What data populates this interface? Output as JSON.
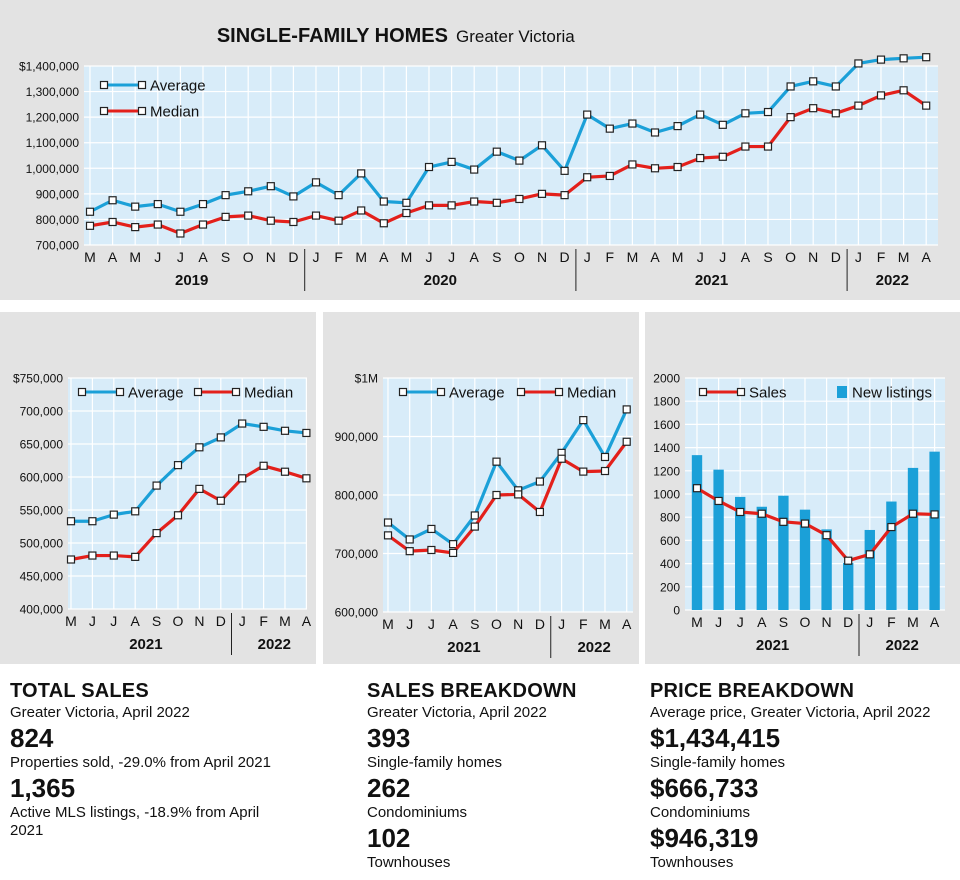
{
  "header": {
    "title": "SINGLE-FAMILY HOMES",
    "subtitle": "Greater Victoria"
  },
  "colors": {
    "average": "#1ba0d8",
    "median": "#e3201b",
    "bars": "#1ba0d8",
    "plot_bg": "#d8ecf9",
    "panel_bg": "#e3e3e3"
  },
  "chart_data": [
    {
      "id": "single-family",
      "type": "line",
      "title": "SINGLE-FAMILY HOMES",
      "subtitle": "Greater Victoria",
      "x": [
        "M",
        "A",
        "M",
        "J",
        "J",
        "A",
        "S",
        "O",
        "N",
        "D",
        "J",
        "F",
        "M",
        "A",
        "M",
        "J",
        "J",
        "A",
        "S",
        "O",
        "N",
        "D",
        "J",
        "F",
        "M",
        "A",
        "M",
        "J",
        "J",
        "A",
        "S",
        "O",
        "N",
        "D",
        "J",
        "F",
        "M",
        "A"
      ],
      "years": [
        {
          "label": "2019",
          "start": 0,
          "end": 9
        },
        {
          "label": "2020",
          "start": 10,
          "end": 21
        },
        {
          "label": "2021",
          "start": 22,
          "end": 33
        },
        {
          "label": "2022",
          "start": 34,
          "end": 37
        }
      ],
      "series": [
        {
          "name": "Average",
          "values": [
            830000,
            875000,
            850000,
            860000,
            830000,
            860000,
            895000,
            910000,
            930000,
            890000,
            945000,
            895000,
            980000,
            870000,
            865000,
            1005000,
            1025000,
            995000,
            1065000,
            1030000,
            1090000,
            990000,
            1210000,
            1155000,
            1175000,
            1140000,
            1165000,
            1210000,
            1170000,
            1215000,
            1220000,
            1320000,
            1340000,
            1320000,
            1410000,
            1425000,
            1430000,
            1434415
          ]
        },
        {
          "name": "Median",
          "values": [
            775000,
            790000,
            770000,
            780000,
            745000,
            780000,
            810000,
            815000,
            795000,
            790000,
            815000,
            795000,
            835000,
            785000,
            825000,
            855000,
            855000,
            870000,
            865000,
            880000,
            900000,
            895000,
            965000,
            970000,
            1015000,
            1000000,
            1005000,
            1040000,
            1045000,
            1085000,
            1085000,
            1200000,
            1235000,
            1215000,
            1245000,
            1285000,
            1305000,
            1245000
          ]
        }
      ],
      "yticks": [
        "$1,400,000",
        "1,300,000",
        "1,200,000",
        "1,100,000",
        "1,000,000",
        "900,000",
        "800,000",
        "700,000"
      ],
      "ylim": [
        700000,
        1400000
      ],
      "legend_position": "top-left"
    },
    {
      "id": "condominiums",
      "type": "line",
      "x": [
        "M",
        "J",
        "J",
        "A",
        "S",
        "O",
        "N",
        "D",
        "J",
        "F",
        "M",
        "A"
      ],
      "years": [
        {
          "label": "2021",
          "start": 0,
          "end": 7
        },
        {
          "label": "2022",
          "start": 8,
          "end": 11
        }
      ],
      "series": [
        {
          "name": "Average",
          "values": [
            533000,
            533000,
            543000,
            548000,
            587000,
            618000,
            645000,
            660000,
            681000,
            676000,
            670000,
            666733
          ]
        },
        {
          "name": "Median",
          "values": [
            475000,
            481000,
            481000,
            479000,
            515000,
            542000,
            582000,
            564000,
            598000,
            617000,
            608000,
            598000
          ]
        }
      ],
      "yticks": [
        "$750,000",
        "700,000",
        "650,000",
        "600,000",
        "550,000",
        "500,000",
        "450,000",
        "400,000"
      ],
      "ylim": [
        400000,
        750000
      ],
      "legend_position": "top"
    },
    {
      "id": "townhouses",
      "type": "line",
      "x": [
        "M",
        "J",
        "J",
        "A",
        "S",
        "O",
        "N",
        "D",
        "J",
        "F",
        "M",
        "A"
      ],
      "years": [
        {
          "label": "2021",
          "start": 0,
          "end": 7
        },
        {
          "label": "2022",
          "start": 8,
          "end": 11
        }
      ],
      "series": [
        {
          "name": "Average",
          "values": [
            753000,
            724000,
            742000,
            716000,
            765000,
            857000,
            808000,
            823000,
            872000,
            928000,
            865000,
            946319
          ]
        },
        {
          "name": "Median",
          "values": [
            731000,
            704000,
            706000,
            701000,
            746000,
            800000,
            801000,
            771000,
            862000,
            840000,
            841000,
            891000
          ]
        }
      ],
      "yticks": [
        "$1M",
        "900,000",
        "800,000",
        "700,000",
        "600,000"
      ],
      "ylim": [
        600000,
        1000000
      ],
      "legend_position": "top"
    },
    {
      "id": "sales-listings",
      "type": "bar",
      "x": [
        "M",
        "J",
        "J",
        "A",
        "S",
        "O",
        "N",
        "D",
        "J",
        "F",
        "M",
        "A"
      ],
      "years": [
        {
          "label": "2021",
          "start": 0,
          "end": 7
        },
        {
          "label": "2022",
          "start": 8,
          "end": 11
        }
      ],
      "series": [
        {
          "name": "New listings",
          "type": "bar",
          "values": [
            1335,
            1210,
            975,
            890,
            985,
            865,
            695,
            405,
            690,
            935,
            1225,
            1365
          ]
        },
        {
          "name": "Sales",
          "type": "line",
          "values": [
            1050,
            940,
            845,
            830,
            760,
            745,
            645,
            425,
            480,
            715,
            830,
            824
          ]
        }
      ],
      "yticks": [
        "2000",
        "1800",
        "1600",
        "1400",
        "1200",
        "1000",
        "800",
        "600",
        "400",
        "200",
        "0"
      ],
      "ylim": [
        0,
        2000
      ],
      "legend_position": "top"
    }
  ],
  "info": [
    {
      "heading": "TOTAL SALES",
      "sub": "Greater Victoria, April 2022",
      "items": [
        {
          "value": "824",
          "label": "Properties sold, -29.0% from April 2021"
        },
        {
          "value": "1,365",
          "label": "Active MLS listings, -18.9% from April 2021"
        }
      ]
    },
    {
      "heading": "SALES BREAKDOWN",
      "sub": "Greater Victoria, April 2022",
      "items": [
        {
          "value": "393",
          "label": "Single-family homes"
        },
        {
          "value": "262",
          "label": "Condominiums"
        },
        {
          "value": "102",
          "label": "Townhouses"
        }
      ]
    },
    {
      "heading": "PRICE BREAKDOWN",
      "sub": "Average price, Greater Victoria, April 2022",
      "items": [
        {
          "value": "$1,434,415",
          "label": "Single-family homes"
        },
        {
          "value": "$666,733",
          "label": "Condominiums"
        },
        {
          "value": "$946,319",
          "label": "Townhouses"
        }
      ]
    }
  ]
}
